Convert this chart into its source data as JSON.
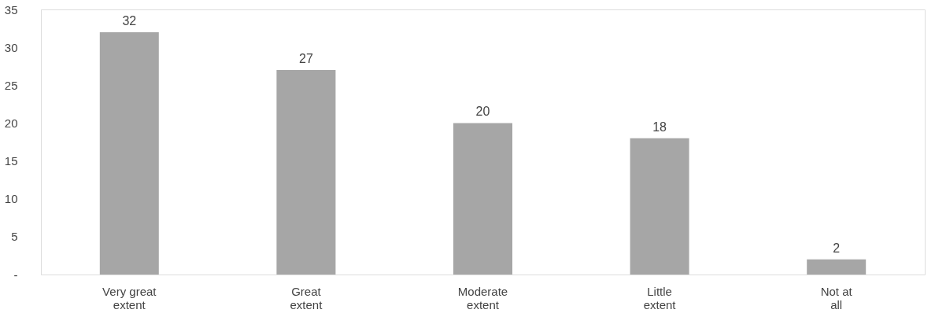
{
  "chart_data": {
    "type": "bar",
    "categories": [
      "Very great extent",
      "Great extent",
      "Moderate extent",
      "Little extent",
      "Not at all"
    ],
    "values": [
      32,
      27,
      20,
      18,
      2
    ],
    "color": "#a6a6a6",
    "ylim": [
      0,
      35
    ],
    "yticks": [
      {
        "value": 0,
        "label": "-"
      },
      5,
      10,
      15,
      20,
      25,
      30,
      35
    ],
    "data_labels": true,
    "grid": false
  }
}
